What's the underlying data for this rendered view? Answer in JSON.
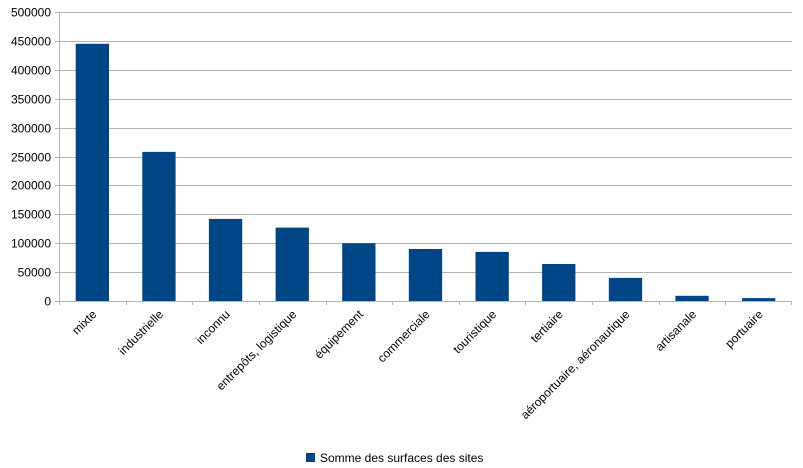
{
  "chart_data": {
    "type": "bar",
    "title": "",
    "xlabel": "",
    "ylabel": "",
    "categories": [
      "mixte",
      "industrielle",
      "inconnu",
      "entrepôts, logistique",
      "équipement",
      "commerciale",
      "touristique",
      "tertiaire",
      "aéroportuaire, aéronautique",
      "artisanale",
      "portuaire"
    ],
    "series": [
      {
        "name": "Somme des surfaces des sites",
        "values": [
          445000,
          258000,
          142000,
          127000,
          100000,
          90000,
          85000,
          64000,
          40000,
          9000,
          5000
        ],
        "color": "#004586"
      }
    ],
    "ylim": [
      0,
      500000
    ],
    "yticks": [
      "0",
      "50000",
      "100000",
      "150000",
      "200000",
      "250000",
      "300000",
      "350000",
      "400000",
      "450000",
      "500000"
    ],
    "grid": true,
    "legend_position": "bottom"
  }
}
